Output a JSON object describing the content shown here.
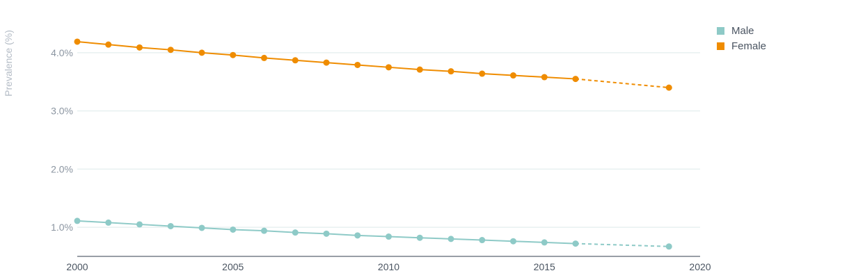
{
  "chart_data": {
    "type": "line",
    "ylabel": "Prevalence (%)",
    "xlabel": "",
    "xlim": [
      2000,
      2020
    ],
    "ylim": [
      0.5,
      4.5
    ],
    "x_ticks": [
      "2000",
      "2005",
      "2010",
      "2015",
      "2020"
    ],
    "y_ticks": [
      "1.0%",
      "2.0%",
      "3.0%",
      "4.0%"
    ],
    "grid": true,
    "legend_position": "top-right",
    "series": [
      {
        "name": "Male",
        "color": "#8ecac7",
        "x": [
          2000,
          2001,
          2002,
          2003,
          2004,
          2005,
          2006,
          2007,
          2008,
          2009,
          2010,
          2011,
          2012,
          2013,
          2014,
          2015,
          2016,
          2019
        ],
        "y": [
          1.11,
          1.08,
          1.05,
          1.02,
          0.99,
          0.96,
          0.94,
          0.91,
          0.89,
          0.86,
          0.84,
          0.82,
          0.8,
          0.78,
          0.76,
          0.74,
          0.72,
          0.67
        ],
        "projected_from_index": 16
      },
      {
        "name": "Female",
        "color": "#ef8c00",
        "x": [
          2000,
          2001,
          2002,
          2003,
          2004,
          2005,
          2006,
          2007,
          2008,
          2009,
          2010,
          2011,
          2012,
          2013,
          2014,
          2015,
          2016,
          2019
        ],
        "y": [
          4.19,
          4.14,
          4.09,
          4.05,
          4.0,
          3.96,
          3.91,
          3.87,
          3.83,
          3.79,
          3.75,
          3.71,
          3.68,
          3.64,
          3.61,
          3.58,
          3.55,
          3.4
        ],
        "projected_from_index": 16
      }
    ]
  },
  "colors": {
    "grid": "#e3eeee",
    "axis": "#5a6470",
    "tick_text": "#8b95a1",
    "x_tick_text": "#4a5461"
  }
}
